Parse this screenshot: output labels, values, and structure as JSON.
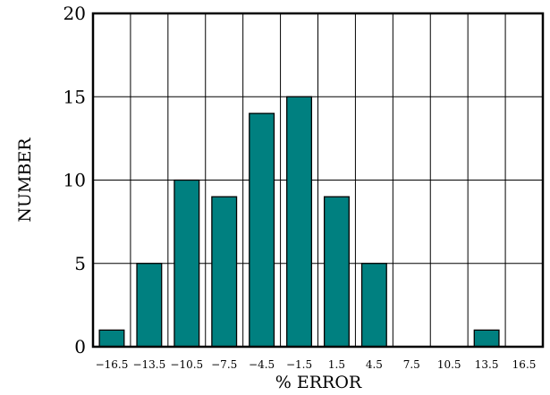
{
  "chart_data": {
    "type": "bar",
    "categories": [
      "−16.5",
      "−13.5",
      "−10.5",
      "−7.5",
      "−4.5",
      "−1.5",
      "1.5",
      "4.5",
      "7.5",
      "10.5",
      "13.5",
      "16.5"
    ],
    "values": [
      1,
      5,
      10,
      9,
      14,
      15,
      9,
      5,
      0,
      0,
      1,
      0
    ],
    "xlabel": "% ERROR",
    "ylabel": "NUMBER",
    "ylim": [
      0,
      20
    ],
    "yticks": [
      "0",
      "5",
      "10",
      "15",
      "20"
    ],
    "grid": true,
    "bar_color": "#008080"
  }
}
